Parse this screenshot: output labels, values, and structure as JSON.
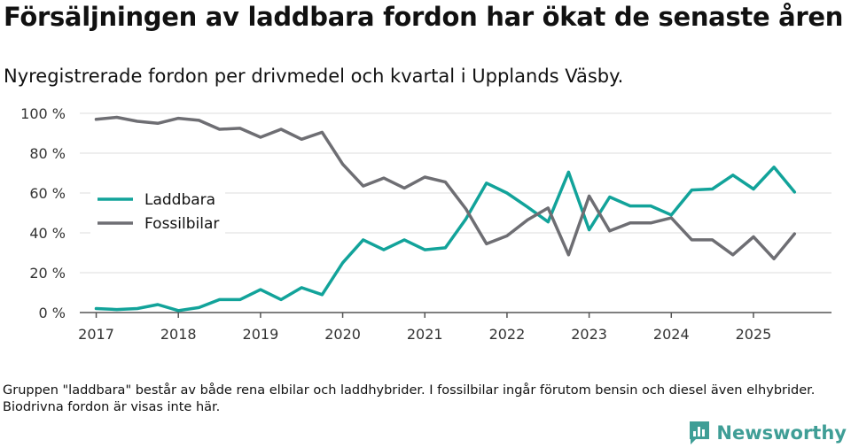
{
  "title": "Försäljningen av laddbara fordon har ökat de senaste åren",
  "subtitle": "Nyregistrerade fordon per drivmedel och kvartal i Upplands Väsby.",
  "note": "Gruppen \"laddbara\" består av både rena elbilar och laddhybrider. I fossilbilar ingår förutom bensin och diesel även elhybrider. Biodrivna fordon är visas inte här.",
  "brand": {
    "name": "Newsworthy",
    "color": "#3f9e96",
    "icon": "bar-chart-logo-icon"
  },
  "chart_data": {
    "type": "line",
    "title": "Försäljningen av laddbara fordon har ökat de senaste åren",
    "subtitle": "Nyregistrerade fordon per drivmedel och kvartal i Upplands Väsby.",
    "xlabel": "",
    "ylabel": "",
    "x": [
      2017,
      2017.25,
      2017.5,
      2017.75,
      2018,
      2018.25,
      2018.5,
      2018.75,
      2019,
      2019.25,
      2019.5,
      2019.75,
      2020,
      2020.25,
      2020.5,
      2020.75,
      2021,
      2021.25,
      2021.5,
      2021.75,
      2022,
      2022.25,
      2022.5,
      2022.75,
      2023,
      2023.25,
      2023.5,
      2023.75,
      2024,
      2024.25,
      2024.5,
      2024.75,
      2025,
      2025.25,
      2025.5
    ],
    "xlim": [
      2016.8,
      2025.95
    ],
    "xticks": [
      2017,
      2018,
      2019,
      2020,
      2021,
      2022,
      2023,
      2024,
      2025
    ],
    "xtick_labels": [
      "2017",
      "2018",
      "2019",
      "2020",
      "2021",
      "2022",
      "2023",
      "2024",
      "2025"
    ],
    "ylim": [
      0,
      100
    ],
    "yticks": [
      0,
      20,
      40,
      60,
      80,
      100
    ],
    "ytick_labels": [
      "0 %",
      "20 %",
      "40 %",
      "60 %",
      "80 %",
      "100 %"
    ],
    "grid": true,
    "legend_position": "middle-left",
    "series": [
      {
        "name": "Laddbara",
        "color": "#12a39a",
        "values": [
          2,
          1.5,
          2,
          4,
          1,
          2.5,
          6.5,
          6.5,
          11.5,
          6.5,
          12.5,
          9,
          25,
          36.5,
          31.5,
          36.5,
          31.5,
          32.5,
          47,
          65,
          60,
          53,
          45.5,
          70.5,
          41.5,
          58,
          53.5,
          53.5,
          49,
          61.5,
          62,
          69,
          62,
          73,
          60.5
        ]
      },
      {
        "name": "Fossilbilar",
        "color": "#6e6e73",
        "values": [
          97,
          98,
          96,
          95,
          97.5,
          96.5,
          92,
          92.5,
          88,
          92,
          87,
          90.5,
          74.5,
          63.5,
          67.5,
          62.5,
          68,
          65.5,
          52,
          34.5,
          38.5,
          46.5,
          52.5,
          29,
          58.5,
          41,
          45,
          45,
          47.5,
          36.5,
          36.5,
          29,
          38,
          27,
          39.5
        ]
      }
    ]
  }
}
